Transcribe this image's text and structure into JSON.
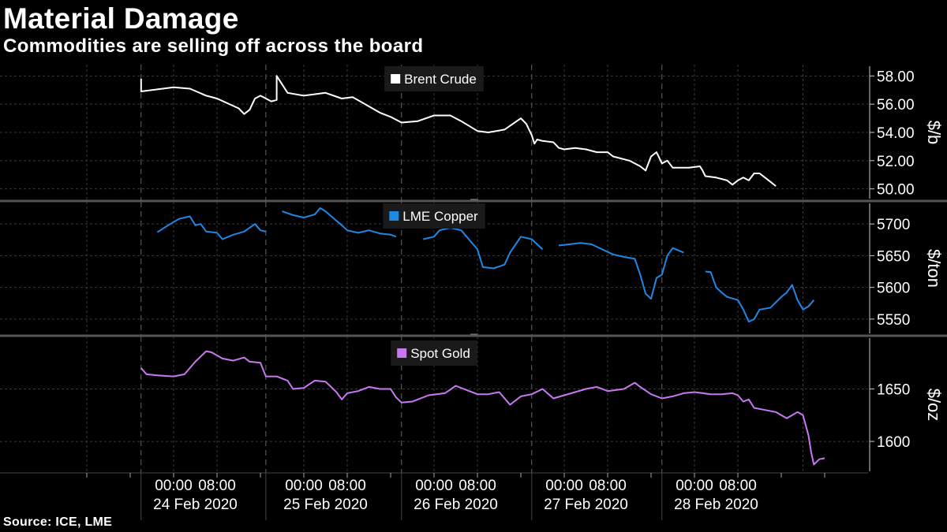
{
  "title": "Material Damage",
  "subtitle": "Commodities are selling off across the board",
  "source": "Source: ICE, LME",
  "chart_data": {
    "type": "line",
    "x_unit": "hours since 00:00 24 Feb 2020",
    "x_range": [
      -32,
      128
    ],
    "x_ticks": [
      {
        "x": 0,
        "label": "00:00"
      },
      {
        "x": 8,
        "label": "08:00"
      },
      {
        "x": 24,
        "label": "00:00"
      },
      {
        "x": 32,
        "label": "08:00"
      },
      {
        "x": 48,
        "label": "00:00"
      },
      {
        "x": 56,
        "label": "08:00"
      },
      {
        "x": 72,
        "label": "00:00"
      },
      {
        "x": 80,
        "label": "08:00"
      },
      {
        "x": 96,
        "label": "00:00"
      },
      {
        "x": 104,
        "label": "08:00"
      }
    ],
    "date_labels": [
      {
        "x": 4,
        "label": "24 Feb 2020"
      },
      {
        "x": 28,
        "label": "25 Feb 2020"
      },
      {
        "x": 52,
        "label": "26 Feb 2020"
      },
      {
        "x": 76,
        "label": "27 Feb 2020"
      },
      {
        "x": 100,
        "label": "28 Feb 2020"
      }
    ],
    "day_separators": [
      -6,
      17,
      42,
      66,
      90
    ],
    "panels": [
      {
        "name": "Brent Crude",
        "unit": "$/b",
        "color": "#ffffff",
        "ylim": [
          49.2,
          58.8
        ],
        "ticks": [
          50,
          52,
          54,
          56,
          58
        ],
        "tick_labels": [
          "50.00",
          "52.00",
          "54.00",
          "56.00",
          "58.00"
        ],
        "segments": [
          [
            [
              -6,
              57.8
            ],
            [
              -6,
              56.9
            ],
            [
              -4,
              57.0
            ],
            [
              0,
              57.2
            ],
            [
              3,
              57.1
            ],
            [
              6,
              56.6
            ],
            [
              8,
              56.4
            ],
            [
              12,
              55.7
            ],
            [
              13,
              55.3
            ],
            [
              14,
              55.6
            ],
            [
              15,
              56.4
            ],
            [
              16,
              56.6
            ],
            [
              18,
              56.2
            ],
            [
              19,
              56.3
            ],
            [
              19,
              58.0
            ],
            [
              21,
              56.8
            ],
            [
              24,
              56.6
            ],
            [
              28,
              56.8
            ],
            [
              31,
              56.4
            ],
            [
              33,
              56.5
            ],
            [
              38,
              55.4
            ],
            [
              40,
              55.1
            ],
            [
              42,
              54.7
            ],
            [
              45,
              54.8
            ],
            [
              48,
              55.2
            ],
            [
              51,
              55.2
            ],
            [
              53,
              54.8
            ],
            [
              56,
              54.1
            ],
            [
              58,
              54.0
            ],
            [
              61,
              54.2
            ],
            [
              64,
              55.0
            ],
            [
              65,
              54.6
            ],
            [
              66,
              53.8
            ],
            [
              66.5,
              53.2
            ],
            [
              67,
              53.5
            ],
            [
              68,
              53.4
            ],
            [
              70,
              53.3
            ],
            [
              71,
              52.9
            ],
            [
              72,
              52.8
            ],
            [
              74,
              52.9
            ],
            [
              76,
              52.8
            ],
            [
              78,
              52.6
            ],
            [
              80,
              52.6
            ],
            [
              81,
              52.3
            ],
            [
              84,
              52.0
            ],
            [
              86,
              51.6
            ],
            [
              87,
              51.3
            ],
            [
              88,
              52.3
            ],
            [
              89,
              52.6
            ],
            [
              90,
              51.8
            ],
            [
              91,
              52.0
            ],
            [
              92,
              51.5
            ],
            [
              95,
              51.5
            ],
            [
              97,
              51.6
            ],
            [
              97.5,
              51.3
            ],
            [
              98,
              50.9
            ],
            [
              100,
              50.8
            ],
            [
              102,
              50.6
            ],
            [
              103,
              50.3
            ],
            [
              104,
              50.6
            ],
            [
              105,
              50.8
            ],
            [
              106,
              50.6
            ],
            [
              107,
              51.1
            ],
            [
              108,
              51.1
            ],
            [
              109,
              50.8
            ],
            [
              110,
              50.5
            ],
            [
              111,
              50.2
            ]
          ]
        ]
      },
      {
        "name": "LME Copper",
        "unit": "$/ton",
        "color": "#1e88e5",
        "ylim": [
          5525,
          5735
        ],
        "ticks": [
          5550,
          5600,
          5650,
          5700
        ],
        "tick_labels": [
          "5550",
          "5600",
          "5650",
          "5700"
        ],
        "segments": [
          [
            [
              -3,
              5687
            ],
            [
              -1,
              5698
            ],
            [
              1,
              5708
            ],
            [
              3,
              5712
            ],
            [
              4,
              5698
            ],
            [
              5,
              5700
            ],
            [
              6,
              5688
            ],
            [
              8,
              5686
            ],
            [
              9,
              5676
            ],
            [
              11,
              5683
            ],
            [
              13,
              5688
            ],
            [
              15,
              5700
            ],
            [
              16,
              5690
            ],
            [
              17,
              5688
            ]
          ],
          [
            [
              20,
              5720
            ],
            [
              22,
              5714
            ],
            [
              24,
              5710
            ],
            [
              26,
              5715
            ],
            [
              27,
              5725
            ],
            [
              28,
              5720
            ],
            [
              30,
              5705
            ],
            [
              31,
              5698
            ],
            [
              32,
              5690
            ],
            [
              34,
              5686
            ],
            [
              36,
              5690
            ],
            [
              38,
              5685
            ],
            [
              40,
              5683
            ],
            [
              41,
              5680
            ]
          ],
          [
            [
              46,
              5676
            ],
            [
              48,
              5680
            ],
            [
              49,
              5690
            ],
            [
              51,
              5694
            ],
            [
              53,
              5690
            ],
            [
              54,
              5680
            ],
            [
              56,
              5660
            ],
            [
              57,
              5632
            ],
            [
              59,
              5630
            ],
            [
              61,
              5636
            ],
            [
              62,
              5655
            ],
            [
              64,
              5680
            ],
            [
              66,
              5676
            ],
            [
              68,
              5660
            ]
          ],
          [
            [
              71,
              5666
            ],
            [
              73,
              5668
            ],
            [
              75,
              5670
            ],
            [
              77,
              5668
            ],
            [
              79,
              5660
            ],
            [
              81,
              5652
            ],
            [
              83,
              5648
            ],
            [
              85,
              5645
            ],
            [
              86,
              5620
            ],
            [
              87,
              5590
            ],
            [
              88,
              5582
            ],
            [
              89,
              5615
            ],
            [
              90,
              5620
            ],
            [
              91,
              5650
            ],
            [
              92,
              5662
            ],
            [
              94,
              5655
            ]
          ],
          [
            [
              98,
              5625
            ],
            [
              99,
              5624
            ],
            [
              100,
              5600
            ],
            [
              101,
              5592
            ],
            [
              102,
              5585
            ],
            [
              104,
              5580
            ],
            [
              105,
              5565
            ],
            [
              106,
              5546
            ],
            [
              107,
              5550
            ],
            [
              108,
              5565
            ],
            [
              110,
              5568
            ],
            [
              112,
              5585
            ],
            [
              113,
              5592
            ],
            [
              114,
              5604
            ],
            [
              115,
              5580
            ],
            [
              116,
              5565
            ],
            [
              117,
              5570
            ],
            [
              118,
              5580
            ]
          ]
        ]
      },
      {
        "name": "Spot Gold",
        "unit": "$/oz",
        "color": "#c878f0",
        "ylim": [
          1570,
          1700
        ],
        "ticks": [
          1600,
          1650
        ],
        "tick_labels": [
          "1600",
          "1650"
        ],
        "segments": [
          [
            [
              -6,
              1670
            ],
            [
              -5,
              1664
            ],
            [
              -3,
              1663
            ],
            [
              0,
              1662
            ],
            [
              2,
              1664
            ],
            [
              4,
              1676
            ],
            [
              6,
              1686
            ],
            [
              7,
              1685
            ],
            [
              9,
              1679
            ],
            [
              11,
              1677
            ],
            [
              13,
              1680
            ],
            [
              14,
              1676
            ],
            [
              16,
              1675
            ],
            [
              17,
              1662
            ],
            [
              19,
              1662
            ],
            [
              21,
              1658
            ],
            [
              22,
              1650
            ],
            [
              24,
              1651
            ],
            [
              26,
              1658
            ],
            [
              28,
              1657
            ],
            [
              30,
              1647
            ],
            [
              31,
              1640
            ],
            [
              32,
              1646
            ],
            [
              34,
              1648
            ],
            [
              36,
              1652
            ],
            [
              38,
              1650
            ],
            [
              40,
              1650
            ],
            [
              41,
              1642
            ],
            [
              42,
              1637
            ],
            [
              44,
              1638
            ],
            [
              45,
              1640
            ],
            [
              47,
              1644
            ],
            [
              50,
              1646
            ],
            [
              52,
              1653
            ],
            [
              54,
              1649
            ],
            [
              56,
              1645
            ],
            [
              58,
              1645
            ],
            [
              60,
              1647
            ],
            [
              62,
              1635
            ],
            [
              64,
              1643
            ],
            [
              66,
              1645
            ],
            [
              68,
              1650
            ],
            [
              70,
              1641
            ],
            [
              72,
              1644
            ],
            [
              74,
              1647
            ],
            [
              76,
              1650
            ],
            [
              78,
              1652
            ],
            [
              80,
              1648
            ],
            [
              83,
              1650
            ],
            [
              85,
              1656
            ],
            [
              86,
              1652
            ],
            [
              88,
              1645
            ],
            [
              90,
              1641
            ],
            [
              92,
              1643
            ],
            [
              94,
              1646
            ],
            [
              96,
              1647
            ],
            [
              99,
              1645
            ],
            [
              101,
              1645
            ],
            [
              103,
              1646
            ],
            [
              104,
              1644
            ],
            [
              105,
              1638
            ],
            [
              106,
              1640
            ],
            [
              107,
              1632
            ],
            [
              109,
              1630
            ],
            [
              111,
              1628
            ],
            [
              112,
              1625
            ],
            [
              113,
              1622
            ],
            [
              114,
              1625
            ],
            [
              115,
              1628
            ],
            [
              116,
              1625
            ],
            [
              117,
              1606
            ],
            [
              117.5,
              1590
            ],
            [
              118,
              1578
            ],
            [
              119,
              1583
            ],
            [
              120,
              1584
            ]
          ]
        ]
      }
    ]
  }
}
